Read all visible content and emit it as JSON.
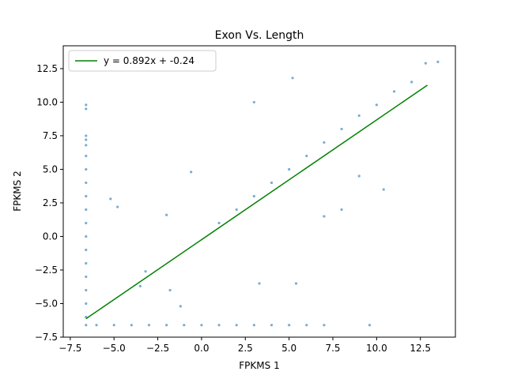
{
  "chart_data": {
    "type": "scatter",
    "title": "Exon Vs. Length",
    "xlabel": "FPKMS 1",
    "ylabel": "FPKMS 2",
    "xlim": [
      -7.9,
      14.5
    ],
    "ylim": [
      -7.5,
      14.2
    ],
    "xticks": [
      -7.5,
      -5.0,
      -2.5,
      0.0,
      2.5,
      5.0,
      7.5,
      10.0,
      12.5
    ],
    "yticks": [
      -7.5,
      -5.0,
      -2.5,
      0.0,
      2.5,
      5.0,
      7.5,
      10.0,
      12.5
    ],
    "xtick_labels": [
      "−7.5",
      "−5.0",
      "−2.5",
      "0.0",
      "2.5",
      "5.0",
      "7.5",
      "10.0",
      "12.5"
    ],
    "ytick_labels": [
      "−7.5",
      "−5.0",
      "−2.5",
      "0.0",
      "2.5",
      "5.0",
      "7.5",
      "10.0",
      "12.5"
    ],
    "grid": false,
    "legend_position": "top-left",
    "series": [
      {
        "kind": "scatter",
        "color": "#1f77b4",
        "points": [
          [
            -6.6,
            9.8
          ],
          [
            -6.6,
            9.5
          ],
          [
            -6.6,
            7.5
          ],
          [
            -6.6,
            7.2
          ],
          [
            -6.6,
            6.8
          ],
          [
            -6.6,
            6.0
          ],
          [
            -6.6,
            5.0
          ],
          [
            -6.6,
            4.0
          ],
          [
            -6.6,
            3.0
          ],
          [
            -6.6,
            2.0
          ],
          [
            -6.6,
            1.0
          ],
          [
            -6.6,
            0.0
          ],
          [
            -6.6,
            -1.0
          ],
          [
            -6.6,
            -2.0
          ],
          [
            -6.6,
            -3.0
          ],
          [
            -6.6,
            -4.0
          ],
          [
            -6.6,
            -5.0
          ],
          [
            -6.6,
            -6.0
          ],
          [
            -6.6,
            -6.6
          ],
          [
            -6.0,
            -6.6
          ],
          [
            -5.0,
            -6.6
          ],
          [
            -4.0,
            -6.6
          ],
          [
            -3.0,
            -6.6
          ],
          [
            -2.0,
            -6.6
          ],
          [
            -1.0,
            -6.6
          ],
          [
            0.0,
            -6.6
          ],
          [
            1.0,
            -6.6
          ],
          [
            2.0,
            -6.6
          ],
          [
            3.0,
            -6.6
          ],
          [
            4.0,
            -6.6
          ],
          [
            5.0,
            -6.6
          ],
          [
            6.0,
            -6.6
          ],
          [
            7.0,
            -6.6
          ],
          [
            9.6,
            -6.6
          ],
          [
            5.2,
            11.8
          ],
          [
            3.0,
            10.0
          ],
          [
            13.5,
            13.0
          ],
          [
            12.8,
            12.9
          ],
          [
            -5.2,
            2.8
          ],
          [
            -4.8,
            2.2
          ],
          [
            -3.5,
            -3.7
          ],
          [
            -1.8,
            -4.0
          ],
          [
            -1.2,
            -5.2
          ],
          [
            -0.6,
            4.8
          ],
          [
            -2.0,
            1.6
          ],
          [
            -3.2,
            -2.6
          ],
          [
            3.3,
            -3.5
          ],
          [
            5.4,
            -3.5
          ],
          [
            9.0,
            4.5
          ],
          [
            10.4,
            3.5
          ],
          [
            8.0,
            2.0
          ],
          [
            7.0,
            1.5
          ],
          [
            1.0,
            1.0
          ],
          [
            2.0,
            2.0
          ],
          [
            3.0,
            3.0
          ],
          [
            4.0,
            4.0
          ],
          [
            5.0,
            5.0
          ],
          [
            6.0,
            6.0
          ],
          [
            7.0,
            7.0
          ],
          [
            8.0,
            8.0
          ],
          [
            9.0,
            9.0
          ],
          [
            10.0,
            9.8
          ],
          [
            11.0,
            10.8
          ],
          [
            12.0,
            11.5
          ]
        ]
      },
      {
        "kind": "line",
        "name": "y = 0.892x + -0.24",
        "color": "#008000",
        "slope": 0.892,
        "intercept": -0.24,
        "x_range": [
          -6.6,
          12.9
        ]
      }
    ]
  }
}
